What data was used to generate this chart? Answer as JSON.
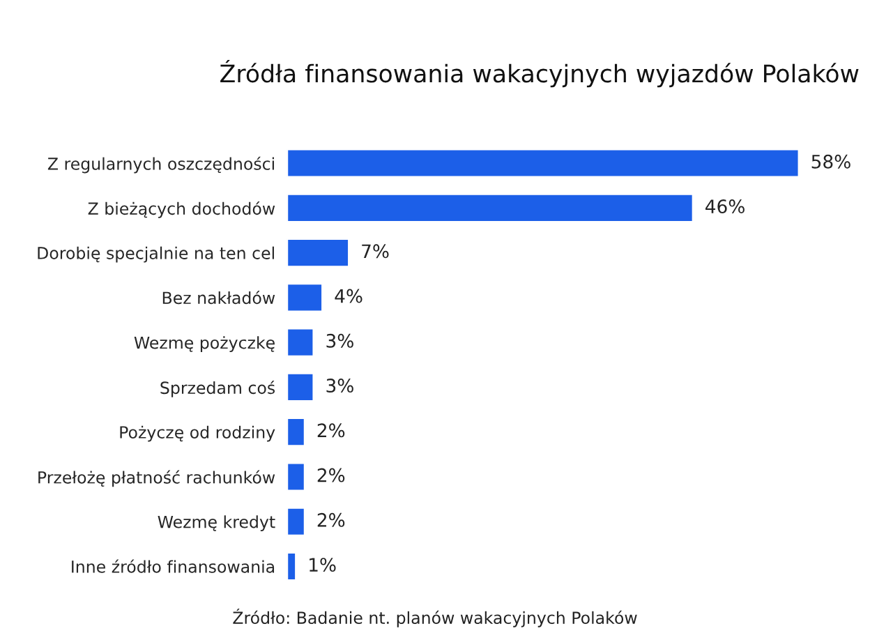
{
  "chart_data": {
    "type": "bar",
    "orientation": "horizontal",
    "title": "Źródła finansowania wakacyjnych wyjazdów Polaków",
    "categories": [
      "Z regularnych oszczędności",
      "Z bieżących dochodów",
      "Dorobię specjalnie na ten cel",
      "Bez nakładów",
      "Wezmę pożyczkę",
      "Sprzedam coś",
      "Pożyczę od rodziny",
      "Przełożę płatność rachunków",
      "Wezmę kredyt",
      "Inne źródło finansowania"
    ],
    "values": [
      58,
      46,
      7,
      4,
      3,
      3,
      2,
      2,
      2,
      1
    ],
    "value_labels": [
      "58%",
      "46%",
      "7%",
      "4%",
      "3%",
      "3%",
      "2%",
      "2%",
      "2%",
      "1%"
    ],
    "color": "#1c5fe8",
    "annotations": [
      "Źródło: Badanie nt. planów wakacyjnych Polaków"
    ]
  }
}
